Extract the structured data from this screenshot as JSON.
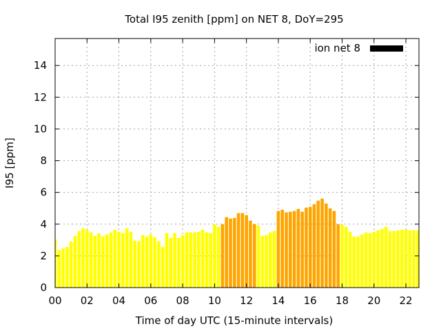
{
  "chart_data": {
    "type": "bar",
    "title": "Total I95 zenith [ppm] on NET 8, DoY=295",
    "xlabel": "Time of day UTC (15-minute intervals)",
    "ylabel": "I95 [ppm]",
    "xlim": [
      0,
      22.82
    ],
    "ylim": [
      0,
      15.7
    ],
    "grid": true,
    "legend_position": "top-right",
    "x_ticks": [
      0,
      2,
      4,
      6,
      8,
      10,
      12,
      14,
      16,
      18,
      20,
      22
    ],
    "x_tick_labels": [
      "00",
      "02",
      "04",
      "06",
      "08",
      "10",
      "12",
      "14",
      "16",
      "18",
      "20",
      "22"
    ],
    "y_ticks": [
      0,
      2,
      4,
      6,
      8,
      10,
      12,
      14
    ],
    "y_tick_labels": [
      "0",
      "2",
      "4",
      "6",
      "8",
      "10",
      "12",
      "14"
    ],
    "x_step_hours": 0.25,
    "series": [
      {
        "name": "ion net 8",
        "legend_color": "#000000",
        "values": [
          3.05,
          2.35,
          2.47,
          2.56,
          2.9,
          3.26,
          3.57,
          3.74,
          3.65,
          3.48,
          3.26,
          3.42,
          3.22,
          3.34,
          3.48,
          3.65,
          3.52,
          3.44,
          3.74,
          3.52,
          2.96,
          2.92,
          3.31,
          3.22,
          3.35,
          3.18,
          2.92,
          2.57,
          3.44,
          3.13,
          3.43,
          3.13,
          3.31,
          3.48,
          3.48,
          3.48,
          3.52,
          3.65,
          3.48,
          3.44,
          4.0,
          3.83,
          4.0,
          4.44,
          4.35,
          4.39,
          4.7,
          4.7,
          4.57,
          4.22,
          4.0,
          3.91,
          3.26,
          3.31,
          3.48,
          3.57,
          4.83,
          4.91,
          4.74,
          4.78,
          4.83,
          4.96,
          4.78,
          5.04,
          5.09,
          5.26,
          5.48,
          5.61,
          5.3,
          5.0,
          4.83,
          4.0,
          3.96,
          3.83,
          3.52,
          3.22,
          3.22,
          3.35,
          3.48,
          3.44,
          3.52,
          3.61,
          3.7,
          3.83,
          3.57,
          3.57,
          3.61,
          3.65,
          3.65,
          3.61,
          3.61,
          3.61
        ],
        "highlight_indices": [
          42,
          43,
          44,
          45,
          46,
          47,
          48,
          49,
          50,
          56,
          57,
          58,
          59,
          60,
          61,
          62,
          63,
          64,
          65,
          66,
          67,
          68,
          69,
          70,
          71
        ]
      }
    ],
    "colors": {
      "normal": "#ffff00",
      "highlight": "#ffa500",
      "grid": "#a0a0a0",
      "axis": "#000000"
    }
  }
}
